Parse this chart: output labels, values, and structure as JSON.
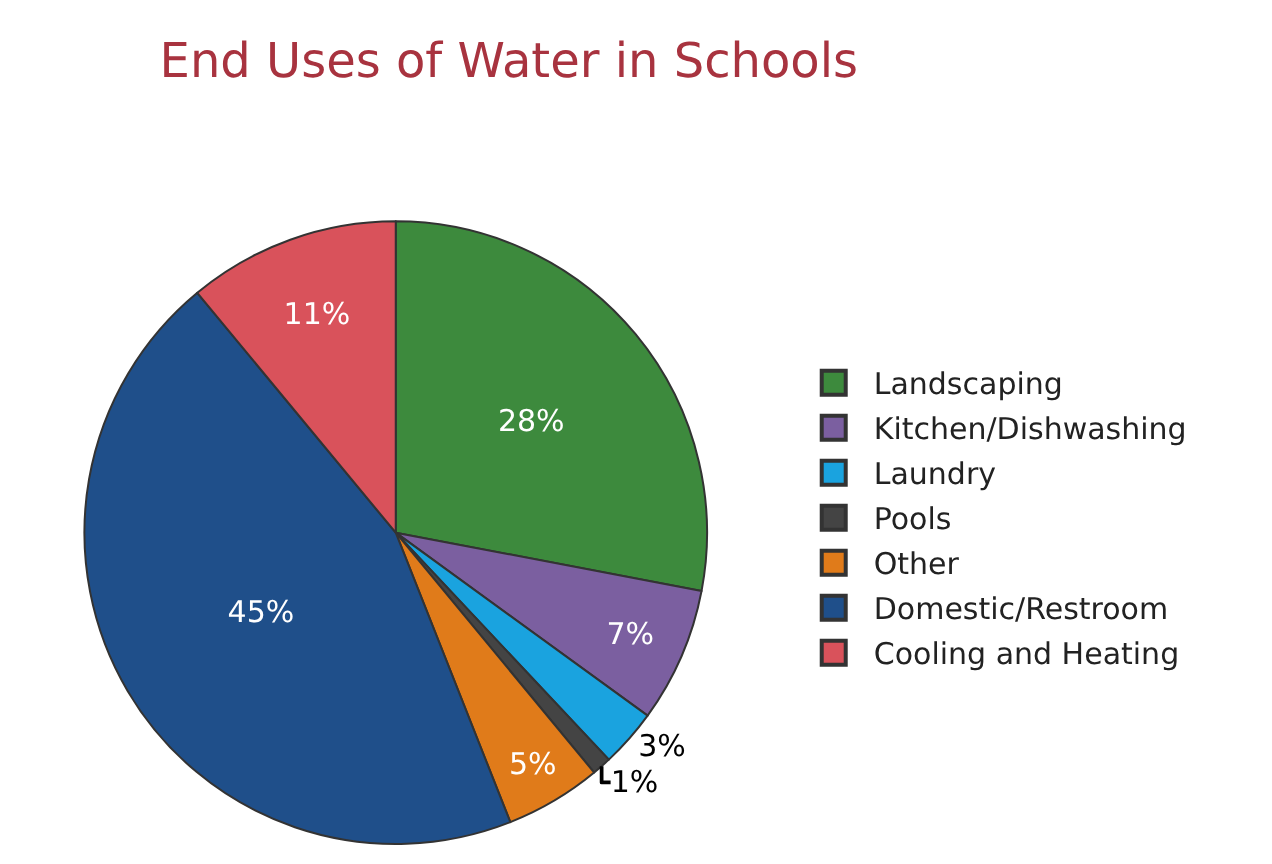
{
  "chart_data": {
    "type": "pie",
    "title": "End Uses of Water in Schools",
    "categories": [
      "Landscaping",
      "Kitchen/Dishwashing",
      "Laundry",
      "Pools",
      "Other",
      "Domestic/Restroom",
      "Cooling and Heating"
    ],
    "values": [
      28,
      7,
      3,
      1,
      5,
      45,
      11
    ],
    "value_labels": [
      "28%",
      "7%",
      "3%",
      "1%",
      "5%",
      "45%",
      "11%"
    ],
    "colors": [
      "#3d8a3d",
      "#7b5fa0",
      "#1aa3df",
      "#444444",
      "#e07b1a",
      "#1f4f8a",
      "#d9525b"
    ],
    "legend": "right"
  }
}
